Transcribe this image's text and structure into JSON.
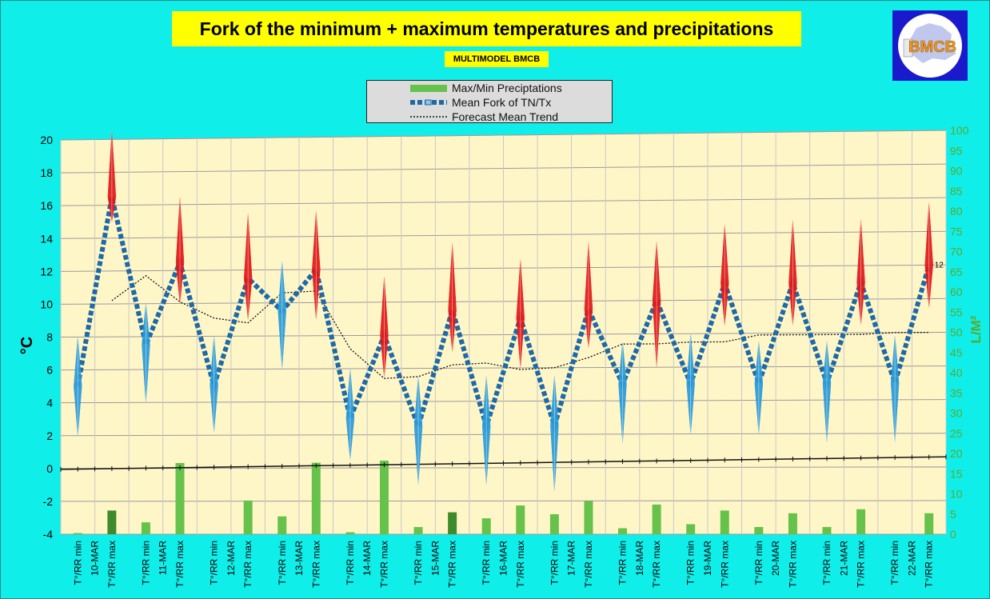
{
  "title": "Fork of the minimum + maximum temperatures and precipitations",
  "subtitle": "MULTIMODEL BMCB",
  "logo_text": "BMCB",
  "colors": {
    "background": "#10eeea",
    "plot_bg": "#fff6c8",
    "title_bg": "#ffff00",
    "mean_fork": "#1f6aa5",
    "max_marker": "#e01818",
    "min_marker": "#2a9ad8",
    "precip": "#66c24a",
    "precip_dark": "#3f8a2a",
    "right_axis": "#5aaa2a",
    "logo_bg": "#1a1acc"
  },
  "legend": [
    {
      "label": "Max/Min Preciptations",
      "icon": "green-bar"
    },
    {
      "label": "Mean Fork of TN/Tx",
      "icon": "dashed-blue-line"
    },
    {
      "label": "Forecast Mean Trend",
      "icon": "dotted-black-line"
    }
  ],
  "chart_data": {
    "type": "line",
    "title": "Fork of the minimum + maximum temperatures and precipitations",
    "ylabel": "°C",
    "y2label": "L/M²",
    "ylim": [
      -4,
      20
    ],
    "yticks": [
      -4,
      -2,
      0,
      2,
      4,
      6,
      8,
      10,
      12,
      14,
      16,
      18,
      20
    ],
    "y2lim": [
      0,
      100
    ],
    "y2ticks": [
      0,
      5,
      10,
      15,
      20,
      25,
      30,
      35,
      40,
      45,
      50,
      55,
      60,
      65,
      70,
      75,
      80,
      85,
      90,
      95,
      100
    ],
    "grid": true,
    "days": [
      "10-MAR",
      "11-MAR",
      "12-MAR",
      "13-MAR",
      "14-MAR",
      "15-MAR",
      "16-MAR",
      "17-MAR",
      "18-MAR",
      "19-MAR",
      "20-MAR",
      "21-MAR",
      "22-MAR"
    ],
    "min_label": "T°/RR min",
    "max_label": "T°/RR max",
    "series": [
      {
        "name": "Mean Fork of TN/Tx",
        "type": "line",
        "values": [
          5,
          16.5,
          7.5,
          12.5,
          5,
          11.5,
          9.5,
          12,
          3,
          8,
          2.5,
          9.5,
          2.5,
          9,
          2.5,
          9.5,
          5,
          10,
          5,
          11,
          5,
          11,
          5,
          11,
          5,
          12
        ]
      },
      {
        "name": "Tmin spread",
        "type": "marker",
        "low": [
          2,
          4,
          2.2,
          6,
          0.5,
          -1,
          -1,
          -1.4,
          1.5,
          2,
          2,
          1.5,
          1.5
        ],
        "high": [
          8,
          10,
          8,
          12.5,
          6,
          5.5,
          5.5,
          5.5,
          7.5,
          8,
          7.5,
          7.5,
          7.8
        ]
      },
      {
        "name": "Tmax spread",
        "type": "marker",
        "low": [
          15,
          10,
          9,
          9,
          5.5,
          7,
          6,
          7.2,
          6,
          8.5,
          8.5,
          8.5,
          9.5
        ],
        "high": [
          20.5,
          16.4,
          15.4,
          15.5,
          11.5,
          13.5,
          12.5,
          13.5,
          13.5,
          14.5,
          14.7,
          14.7,
          15.7
        ]
      },
      {
        "name": "Forecast Mean Trend",
        "type": "line",
        "x": [
          1,
          2,
          3,
          4,
          5,
          6,
          7,
          8,
          9,
          10,
          11,
          12,
          13,
          14,
          15,
          16,
          17,
          18,
          19,
          20,
          21,
          22,
          23,
          24,
          25
        ],
        "values": [
          10.2,
          11.7,
          10.1,
          9.1,
          8.8,
          10.6,
          10.7,
          7.2,
          5.4,
          5.5,
          6.2,
          6.3,
          5.9,
          6.0,
          6.6,
          7.4,
          7.4,
          7.5,
          7.5,
          7.9,
          7.9,
          7.9,
          7.9,
          8.0,
          8.0
        ]
      },
      {
        "name": "Max/Min Preciptations",
        "type": "bar",
        "axis": "y2",
        "values": [
          0.3,
          6,
          3,
          18,
          0,
          8.5,
          4.5,
          18,
          0.5,
          18.5,
          1.8,
          5.5,
          4,
          7.2,
          5,
          8.3,
          1.5,
          7.4,
          2.5,
          5.9,
          1.8,
          5.2,
          1.8,
          6.2,
          0,
          5.2
        ]
      },
      {
        "name": "Precipitation baseline",
        "type": "line",
        "values": [
          -0.05,
          0.6
        ]
      }
    ],
    "annotations": [
      {
        "x": 26,
        "y": 12,
        "text": "12"
      }
    ]
  }
}
